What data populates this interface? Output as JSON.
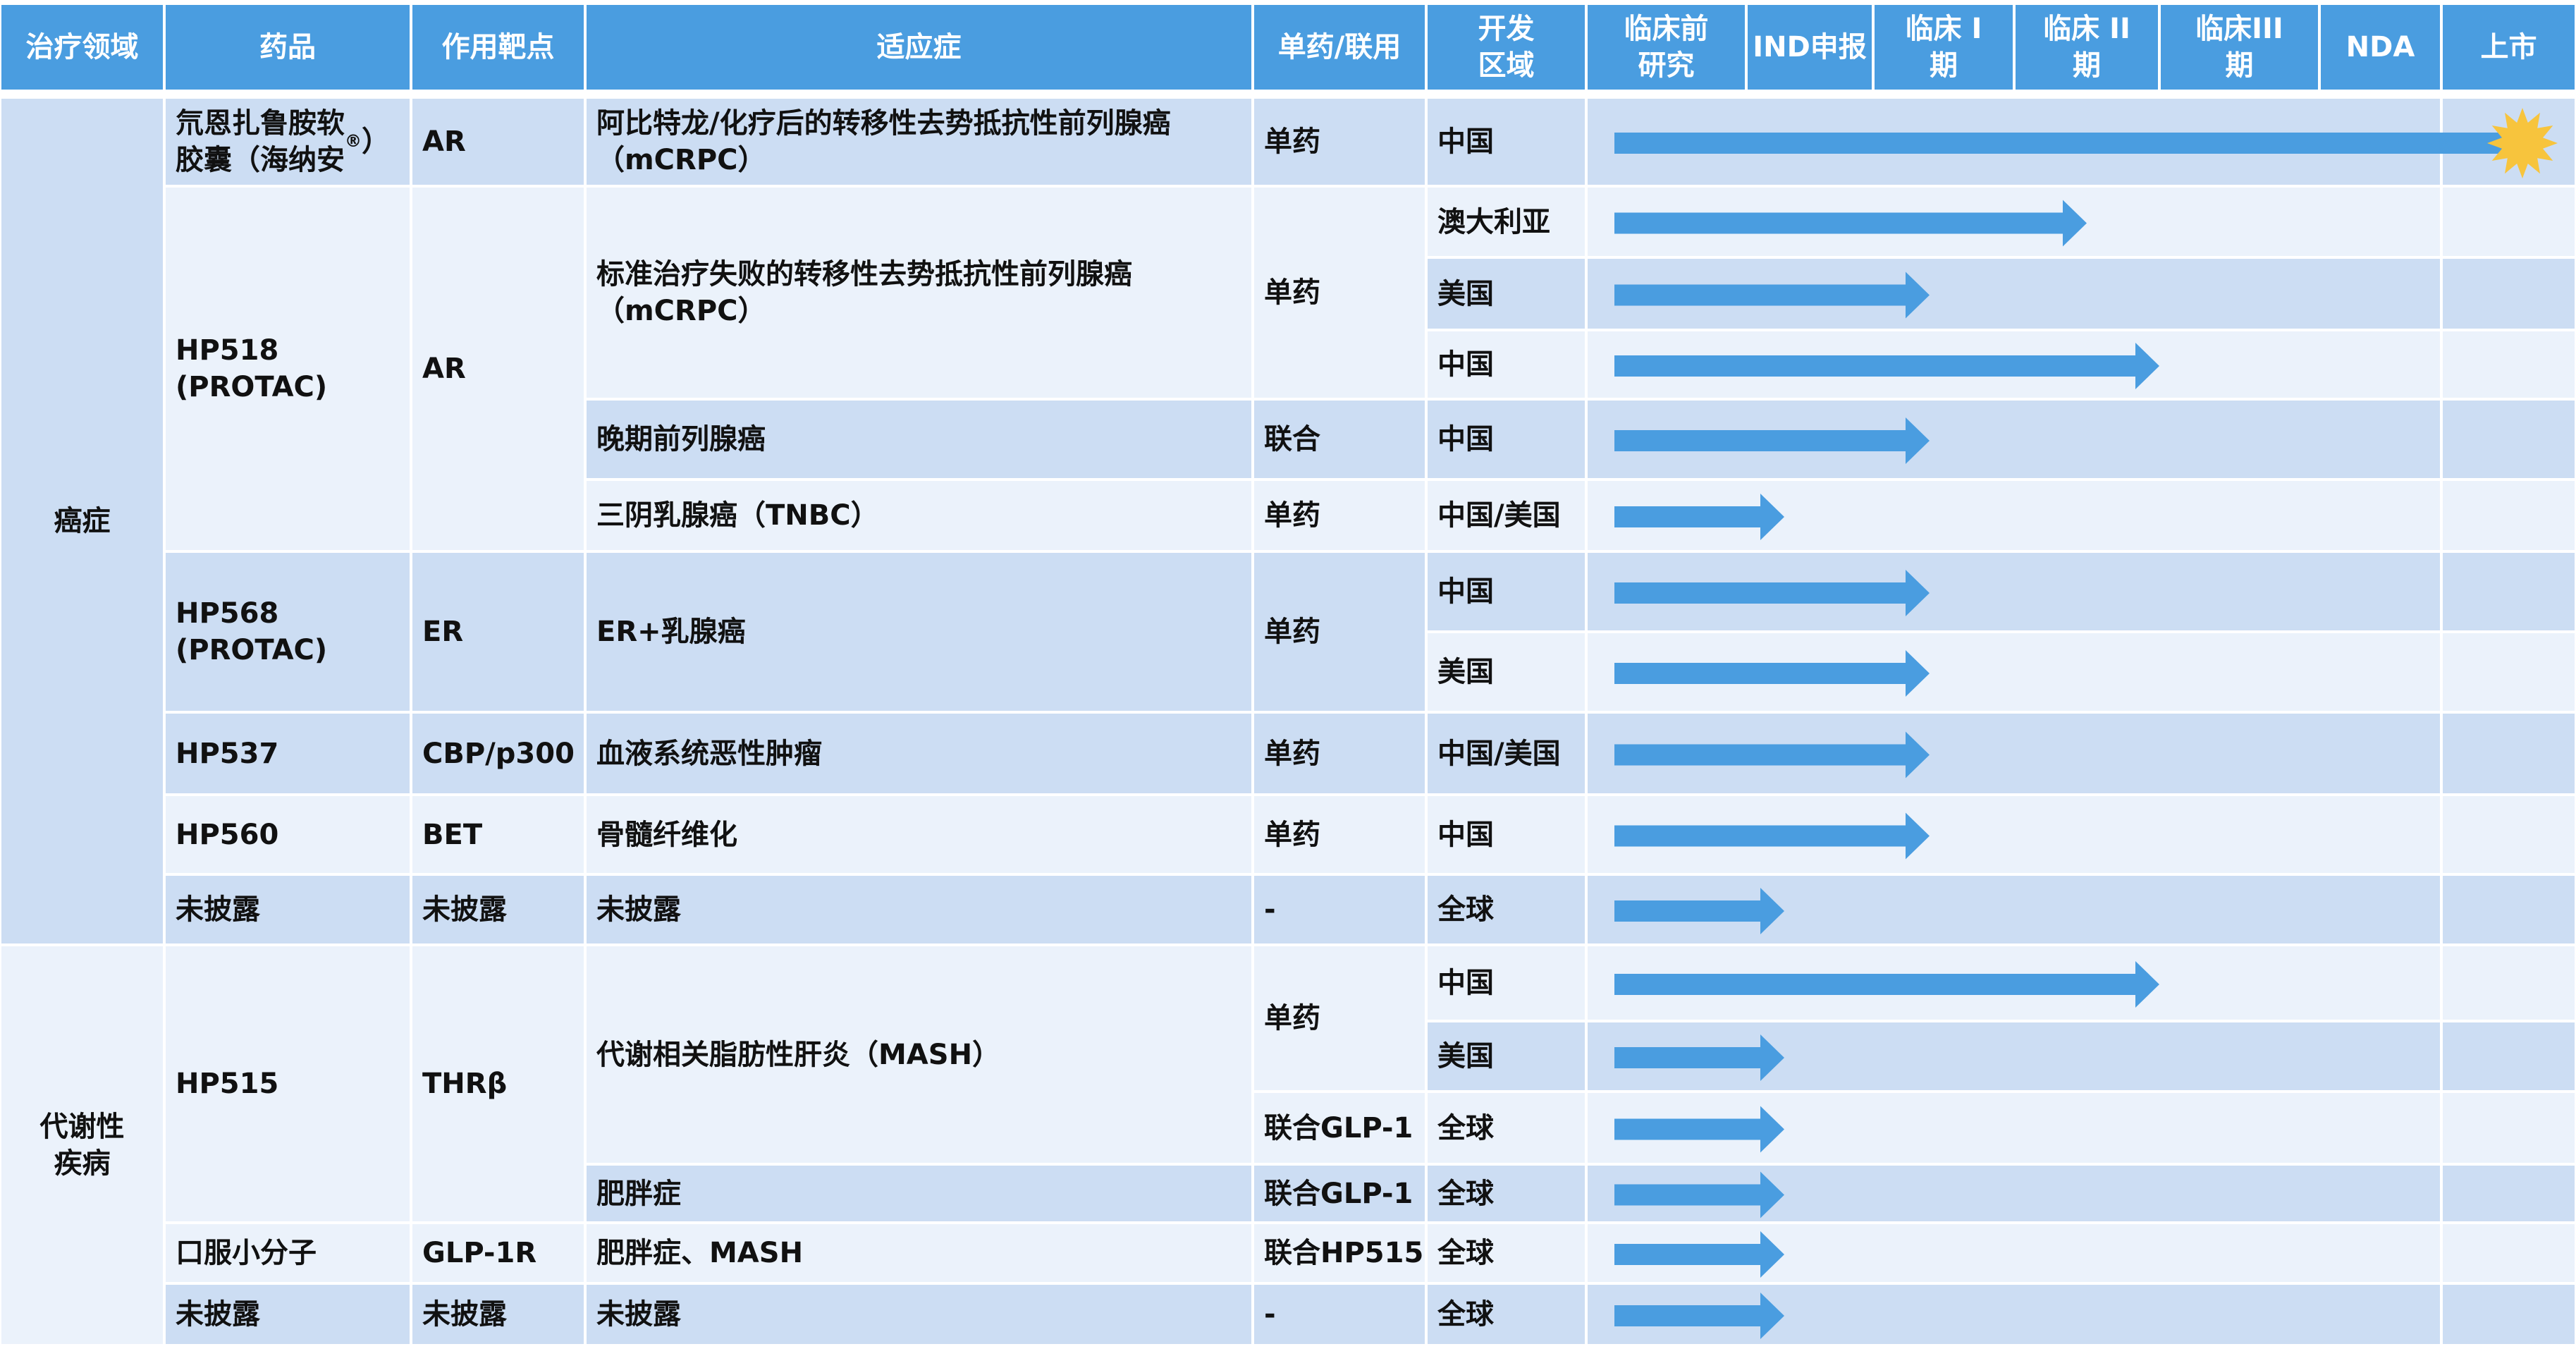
{
  "colors": {
    "header": "#4A9DE0",
    "band_dark": "#CCDDF3",
    "band_light": "#EBF2FB",
    "arrow": "#4A9DE0",
    "star": "#F7C43D",
    "grid": "#ffffff"
  },
  "headers": [
    "治疗领域",
    "药品",
    "作用靶点",
    "适应症",
    "单药/联用",
    "开发\n区域",
    "临床前\n研究",
    "IND申报",
    "临床 I\n期",
    "临床 II\n期",
    "临床III\n期",
    "NDA",
    "上市"
  ],
  "areas": [
    "癌症",
    "代谢性\n疾病"
  ],
  "drugs": [
    "氘恩扎鲁胺软\n胶囊（海纳安",
    "HP518\n(PROTAC)",
    "HP568\n(PROTAC)",
    "HP537",
    "HP560",
    "未披露",
    "HP515",
    "口服小分子",
    "未披露"
  ],
  "drug_suffix": [
    "®",
    "）"
  ],
  "targets": [
    "AR",
    "AR",
    "ER",
    "CBP/p300",
    "BET",
    "未披露",
    "THRβ",
    "GLP-1R",
    "未披露"
  ],
  "indications": [
    "阿比特龙/化疗后的转移性去势抵抗性前列腺癌\n（mCRPC）",
    "标准治疗失败的转移性去势抵抗性前列腺癌\n（mCRPC）",
    "晚期前列腺癌",
    "三阴乳腺癌（TNBC）",
    "ER+乳腺癌",
    "血液系统恶性肿瘤",
    "骨髓纤维化",
    "未披露",
    "代谢相关脂肪性肝炎（MASH）",
    "肥胖症",
    "肥胖症、MASH",
    "未披露"
  ],
  "modes": [
    "单药",
    "单药",
    "联合",
    "单药",
    "单药",
    "单药",
    "单药",
    "-",
    "单药",
    "联合GLP-1",
    "联合GLP-1",
    "联合HP515",
    "-"
  ],
  "regions": [
    "中国",
    "澳大利亚",
    "美国",
    "中国",
    "中国",
    "中国/美国",
    "中国",
    "美国",
    "中国/美国",
    "中国",
    "全球",
    "中国",
    "美国",
    "全球",
    "全球",
    "全球",
    "全球"
  ],
  "chart_data": {
    "type": "table",
    "phases": [
      "临床前研究",
      "IND申报",
      "临床 I期",
      "临床 II期",
      "临床III期",
      "NDA",
      "上市"
    ],
    "note": "progress is measured in phase columns reached by the arrow (0 = start of 临床前研究, 7 = end of 上市)",
    "rows": [
      {
        "area": "癌症",
        "drug": "氘恩扎鲁胺软胶囊（海纳安®）",
        "target": "AR",
        "indication": "阿比特龙/化疗后的转移性去势抵抗性前列腺癌（mCRPC）",
        "mode": "单药",
        "region": "中国",
        "progress": 7.0,
        "marketed": true
      },
      {
        "area": "癌症",
        "drug": "HP518 (PROTAC)",
        "target": "AR",
        "indication": "标准治疗失败的转移性去势抵抗性前列腺癌（mCRPC）",
        "mode": "单药",
        "region": "澳大利亚",
        "progress": 3.5
      },
      {
        "area": "癌症",
        "drug": "HP518 (PROTAC)",
        "target": "AR",
        "indication": "标准治疗失败的转移性去势抵抗性前列腺癌（mCRPC）",
        "mode": "单药",
        "region": "美国",
        "progress": 2.4
      },
      {
        "area": "癌症",
        "drug": "HP518 (PROTAC)",
        "target": "AR",
        "indication": "标准治疗失败的转移性去势抵抗性前列腺癌（mCRPC）",
        "mode": "单药",
        "region": "中国",
        "progress": 4.0
      },
      {
        "area": "癌症",
        "drug": "HP518 (PROTAC)",
        "target": "AR",
        "indication": "晚期前列腺癌",
        "mode": "联合",
        "region": "中国",
        "progress": 2.4
      },
      {
        "area": "癌症",
        "drug": "HP518 (PROTAC)",
        "target": "AR",
        "indication": "三阴乳腺癌（TNBC）",
        "mode": "单药",
        "region": "中国/美国",
        "progress": 1.3
      },
      {
        "area": "癌症",
        "drug": "HP568 (PROTAC)",
        "target": "ER",
        "indication": "ER+乳腺癌",
        "mode": "单药",
        "region": "中国",
        "progress": 2.4
      },
      {
        "area": "癌症",
        "drug": "HP568 (PROTAC)",
        "target": "ER",
        "indication": "ER+乳腺癌",
        "mode": "单药",
        "region": "美国",
        "progress": 2.4
      },
      {
        "area": "癌症",
        "drug": "HP537",
        "target": "CBP/p300",
        "indication": "血液系统恶性肿瘤",
        "mode": "单药",
        "region": "中国/美国",
        "progress": 2.4
      },
      {
        "area": "癌症",
        "drug": "HP560",
        "target": "BET",
        "indication": "骨髓纤维化",
        "mode": "单药",
        "region": "中国",
        "progress": 2.4
      },
      {
        "area": "癌症",
        "drug": "未披露",
        "target": "未披露",
        "indication": "未披露",
        "mode": "-",
        "region": "全球",
        "progress": 1.3
      },
      {
        "area": "代谢性疾病",
        "drug": "HP515",
        "target": "THRβ",
        "indication": "代谢相关脂肪性肝炎（MASH）",
        "mode": "单药",
        "region": "中国",
        "progress": 4.0
      },
      {
        "area": "代谢性疾病",
        "drug": "HP515",
        "target": "THRβ",
        "indication": "代谢相关脂肪性肝炎（MASH）",
        "mode": "单药",
        "region": "美国",
        "progress": 1.3
      },
      {
        "area": "代谢性疾病",
        "drug": "HP515",
        "target": "THRβ",
        "indication": "代谢相关脂肪性肝炎（MASH）",
        "mode": "联合GLP-1",
        "region": "全球",
        "progress": 1.3
      },
      {
        "area": "代谢性疾病",
        "drug": "HP515",
        "target": "THRβ",
        "indication": "肥胖症",
        "mode": "联合GLP-1",
        "region": "全球",
        "progress": 1.3
      },
      {
        "area": "代谢性疾病",
        "drug": "口服小分子",
        "target": "GLP-1R",
        "indication": "肥胖症、MASH",
        "mode": "联合HP515",
        "region": "全球",
        "progress": 1.3
      },
      {
        "area": "代谢性疾病",
        "drug": "未披露",
        "target": "未披露",
        "indication": "未披露",
        "mode": "-",
        "region": "全球",
        "progress": 1.3
      }
    ]
  }
}
